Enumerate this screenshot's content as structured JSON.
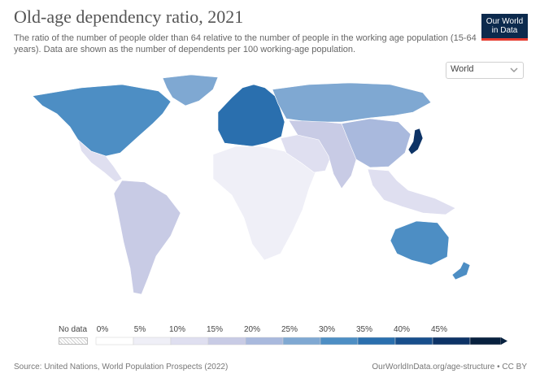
{
  "header": {
    "title": "Old-age dependency ratio, 2021",
    "subtitle": "The ratio of the number of people older than 64 relative to the number of people in the working age population (15-64 years). Data are shown as the number of dependents per 100 working-age population.",
    "logo_line1": "Our World",
    "logo_line2": "in Data"
  },
  "region_select": {
    "value": "World"
  },
  "legend": {
    "no_data_label": "No data",
    "ticks": [
      "0%",
      "5%",
      "10%",
      "15%",
      "20%",
      "25%",
      "30%",
      "35%",
      "40%",
      "45%"
    ],
    "colors": [
      "#ffffff",
      "#efeff7",
      "#dfdff0",
      "#c8cbe5",
      "#a9b9dd",
      "#7fa8d2",
      "#4d8ec4",
      "#2a6fae",
      "#184f8c",
      "#0d3366",
      "#08213f"
    ]
  },
  "map": {
    "regions": [
      {
        "name": "North America",
        "fill": "#4d8ec4"
      },
      {
        "name": "Greenland",
        "fill": "#7fa8d2"
      },
      {
        "name": "Central America",
        "fill": "#dfdff0"
      },
      {
        "name": "South America",
        "fill": "#c8cbe5"
      },
      {
        "name": "Europe",
        "fill": "#2a6fae"
      },
      {
        "name": "Russia",
        "fill": "#7fa8d2"
      },
      {
        "name": "Africa",
        "fill": "#efeff7"
      },
      {
        "name": "Middle East",
        "fill": "#dfdff0"
      },
      {
        "name": "Asia",
        "fill": "#c8cbe5"
      },
      {
        "name": "China",
        "fill": "#a9b9dd"
      },
      {
        "name": "Japan",
        "fill": "#0d3366"
      },
      {
        "name": "Southeast Asia",
        "fill": "#dfdff0"
      },
      {
        "name": "Australia",
        "fill": "#4d8ec4"
      },
      {
        "name": "New Zealand",
        "fill": "#4d8ec4"
      }
    ]
  },
  "footer": {
    "source": "Source: United Nations, World Population Prospects (2022)",
    "url": "OurWorldInData.org/age-structure • CC BY"
  }
}
